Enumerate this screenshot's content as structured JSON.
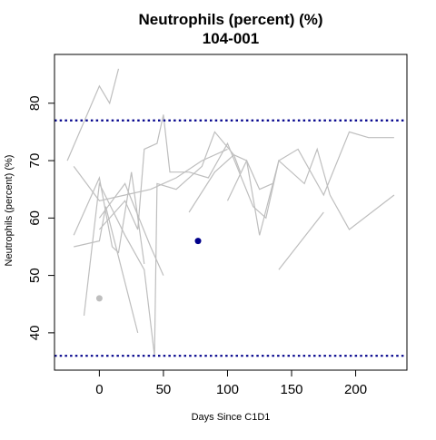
{
  "chart_data": {
    "type": "line",
    "title": "Neutrophils (percent) (%)",
    "subtitle": "104-001",
    "xlabel": "Days Since C1D1",
    "ylabel": "Neutrophils (percent) (%)",
    "xlim": [
      -35,
      240
    ],
    "ylim": [
      33.5,
      88.5
    ],
    "xticks": [
      0,
      50,
      100,
      150,
      200
    ],
    "yticks": [
      40,
      50,
      60,
      70,
      80
    ],
    "reference_lines": [
      {
        "y": 77,
        "style": "dotted",
        "color": "#00008b"
      },
      {
        "y": 36,
        "style": "dotted",
        "color": "#00008b"
      }
    ],
    "background_series": [
      {
        "color": "#bebebe",
        "points": [
          [
            -25,
            70
          ],
          [
            0,
            83
          ],
          [
            8,
            80
          ],
          [
            15,
            86
          ]
        ]
      },
      {
        "color": "#bebebe",
        "points": [
          [
            -20,
            69
          ],
          [
            0,
            63
          ],
          [
            20,
            64
          ],
          [
            40,
            65
          ],
          [
            60,
            67
          ],
          [
            80,
            70
          ],
          [
            100,
            72
          ]
        ]
      },
      {
        "color": "#bebebe",
        "points": [
          [
            -20,
            57
          ],
          [
            0,
            67
          ],
          [
            10,
            55
          ],
          [
            15,
            54
          ],
          [
            25,
            68
          ],
          [
            35,
            52
          ]
        ]
      },
      {
        "color": "#bebebe",
        "points": [
          [
            -12,
            43
          ],
          [
            0,
            66
          ],
          [
            20,
            57
          ],
          [
            35,
            51
          ],
          [
            43,
            36
          ],
          [
            45,
            66
          ],
          [
            60,
            65
          ],
          [
            80,
            69
          ],
          [
            90,
            75
          ],
          [
            105,
            71
          ],
          [
            110,
            68
          ]
        ]
      },
      {
        "color": "#bebebe",
        "points": [
          [
            -20,
            55
          ],
          [
            0,
            56
          ],
          [
            5,
            62
          ],
          [
            30,
            40
          ]
        ]
      },
      {
        "color": "#bebebe",
        "points": [
          [
            0,
            58
          ],
          [
            20,
            63
          ],
          [
            30,
            58
          ],
          [
            35,
            72
          ],
          [
            45,
            73
          ],
          [
            50,
            78
          ],
          [
            55,
            68
          ],
          [
            70,
            68
          ],
          [
            85,
            67
          ],
          [
            100,
            73
          ],
          [
            120,
            62
          ],
          [
            130,
            60
          ],
          [
            140,
            70
          ],
          [
            155,
            72
          ],
          [
            175,
            64
          ],
          [
            195,
            75
          ],
          [
            210,
            74
          ],
          [
            230,
            74
          ]
        ]
      },
      {
        "color": "#bebebe",
        "points": [
          [
            0,
            60
          ],
          [
            20,
            66
          ],
          [
            40,
            55
          ],
          [
            50,
            50
          ]
        ]
      },
      {
        "color": "#bebebe",
        "points": [
          [
            70,
            61
          ],
          [
            90,
            68
          ],
          [
            105,
            71
          ],
          [
            115,
            70
          ],
          [
            125,
            57
          ],
          [
            140,
            70
          ],
          [
            160,
            66
          ],
          [
            170,
            72
          ],
          [
            180,
            64
          ]
        ]
      },
      {
        "color": "#bebebe",
        "points": [
          [
            140,
            51
          ],
          [
            175,
            61
          ]
        ]
      },
      {
        "color": "#bebebe",
        "points": [
          [
            180,
            64
          ],
          [
            195,
            58
          ],
          [
            230,
            64
          ]
        ]
      },
      {
        "color": "#bebebe",
        "points": [
          [
            100,
            63
          ],
          [
            115,
            70
          ],
          [
            125,
            65
          ],
          [
            135,
            66
          ]
        ]
      }
    ],
    "points": [
      {
        "x": 0,
        "y": 46,
        "color": "#bebebe"
      },
      {
        "x": 77,
        "y": 56,
        "color": "#00008b"
      }
    ]
  }
}
